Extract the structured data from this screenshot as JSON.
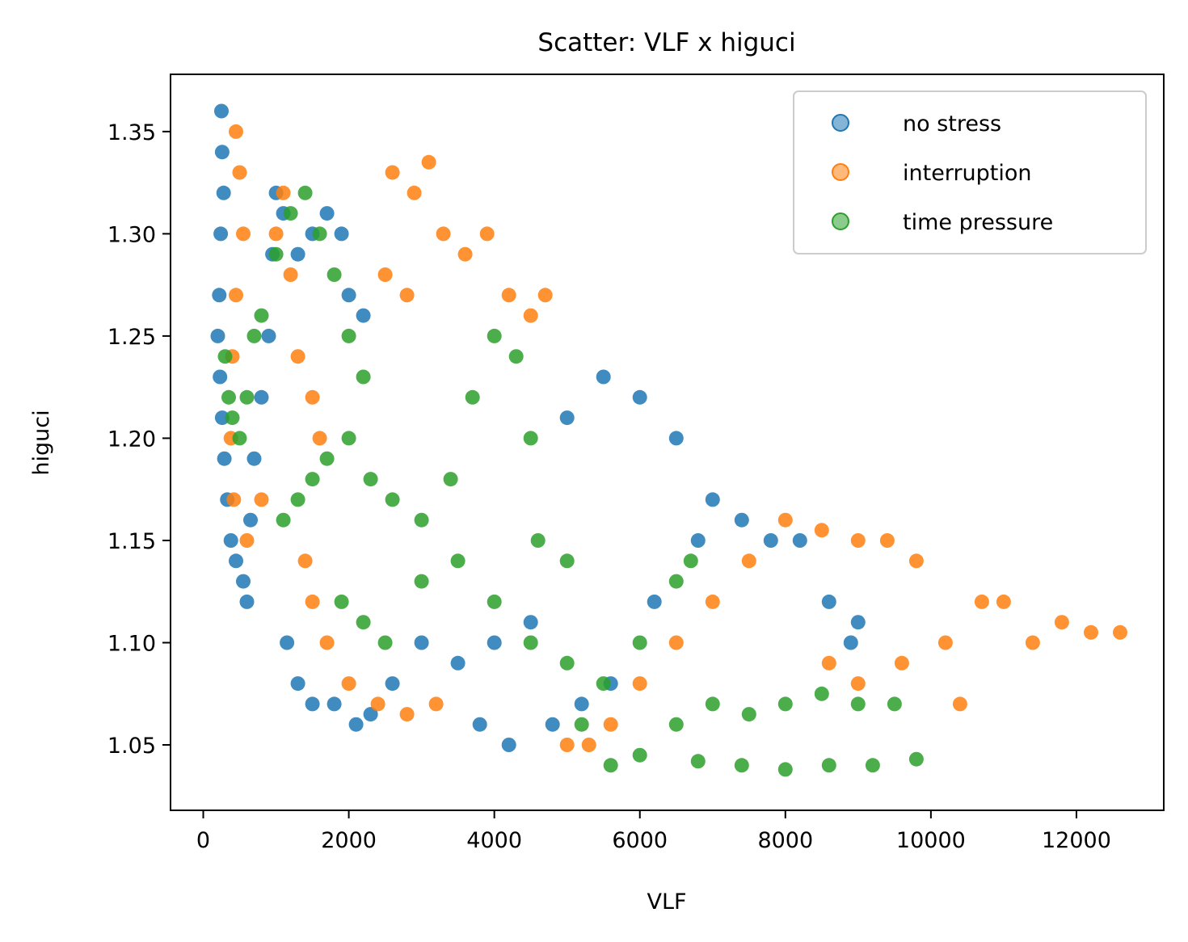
{
  "chart_data": {
    "type": "scatter",
    "title": "Scatter: VLF x higuci",
    "xlabel": "VLF",
    "ylabel": "higuci",
    "xlim": [
      -450,
      13200
    ],
    "ylim": [
      1.018,
      1.378
    ],
    "xticks": [
      0,
      2000,
      4000,
      6000,
      8000,
      10000,
      12000
    ],
    "yticks": [
      1.05,
      1.1,
      1.15,
      1.2,
      1.25,
      1.3,
      1.35
    ],
    "xtick_labels": [
      "0",
      "2000",
      "4000",
      "6000",
      "8000",
      "10000",
      "12000"
    ],
    "ytick_labels": [
      "1.05",
      "1.10",
      "1.15",
      "1.20",
      "1.25",
      "1.30",
      "1.35"
    ],
    "legend_position": "top-right",
    "grid": false,
    "series": [
      {
        "name": "no stress",
        "color": "#1f77b4",
        "points": [
          [
            250,
            1.36
          ],
          [
            260,
            1.34
          ],
          [
            280,
            1.32
          ],
          [
            240,
            1.3
          ],
          [
            220,
            1.27
          ],
          [
            200,
            1.25
          ],
          [
            230,
            1.23
          ],
          [
            260,
            1.21
          ],
          [
            290,
            1.19
          ],
          [
            330,
            1.17
          ],
          [
            380,
            1.15
          ],
          [
            450,
            1.14
          ],
          [
            550,
            1.13
          ],
          [
            600,
            1.12
          ],
          [
            650,
            1.16
          ],
          [
            700,
            1.19
          ],
          [
            800,
            1.22
          ],
          [
            900,
            1.25
          ],
          [
            950,
            1.29
          ],
          [
            1000,
            1.32
          ],
          [
            1100,
            1.31
          ],
          [
            1300,
            1.29
          ],
          [
            1500,
            1.3
          ],
          [
            1700,
            1.31
          ],
          [
            1900,
            1.3
          ],
          [
            2000,
            1.27
          ],
          [
            2200,
            1.26
          ],
          [
            1150,
            1.1
          ],
          [
            1300,
            1.08
          ],
          [
            1500,
            1.07
          ],
          [
            1800,
            1.07
          ],
          [
            2100,
            1.06
          ],
          [
            2300,
            1.065
          ],
          [
            2600,
            1.08
          ],
          [
            3000,
            1.1
          ],
          [
            3500,
            1.09
          ],
          [
            4000,
            1.1
          ],
          [
            4500,
            1.11
          ],
          [
            5000,
            1.21
          ],
          [
            5500,
            1.23
          ],
          [
            6000,
            1.22
          ],
          [
            6500,
            1.2
          ],
          [
            7000,
            1.17
          ],
          [
            7400,
            1.16
          ],
          [
            7800,
            1.15
          ],
          [
            8200,
            1.15
          ],
          [
            8600,
            1.12
          ],
          [
            8900,
            1.1
          ],
          [
            9000,
            1.11
          ],
          [
            3800,
            1.06
          ],
          [
            4200,
            1.05
          ],
          [
            4800,
            1.06
          ],
          [
            5200,
            1.07
          ],
          [
            5600,
            1.08
          ],
          [
            6200,
            1.12
          ],
          [
            6800,
            1.15
          ]
        ]
      },
      {
        "name": "interruption",
        "color": "#ff7f0e",
        "points": [
          [
            450,
            1.35
          ],
          [
            500,
            1.33
          ],
          [
            550,
            1.3
          ],
          [
            450,
            1.27
          ],
          [
            400,
            1.24
          ],
          [
            380,
            1.2
          ],
          [
            420,
            1.17
          ],
          [
            600,
            1.15
          ],
          [
            800,
            1.17
          ],
          [
            1000,
            1.3
          ],
          [
            1100,
            1.32
          ],
          [
            1200,
            1.28
          ],
          [
            1300,
            1.24
          ],
          [
            1500,
            1.22
          ],
          [
            1600,
            1.2
          ],
          [
            1400,
            1.14
          ],
          [
            1500,
            1.12
          ],
          [
            1700,
            1.1
          ],
          [
            2000,
            1.08
          ],
          [
            2400,
            1.07
          ],
          [
            2800,
            1.065
          ],
          [
            3200,
            1.07
          ],
          [
            2600,
            1.33
          ],
          [
            2900,
            1.32
          ],
          [
            3100,
            1.335
          ],
          [
            3300,
            1.3
          ],
          [
            3600,
            1.29
          ],
          [
            3900,
            1.3
          ],
          [
            4200,
            1.27
          ],
          [
            4500,
            1.26
          ],
          [
            4700,
            1.27
          ],
          [
            2500,
            1.28
          ],
          [
            2800,
            1.27
          ],
          [
            5000,
            1.05
          ],
          [
            5300,
            1.05
          ],
          [
            5600,
            1.06
          ],
          [
            6000,
            1.08
          ],
          [
            6500,
            1.1
          ],
          [
            7000,
            1.12
          ],
          [
            7500,
            1.14
          ],
          [
            8000,
            1.16
          ],
          [
            8500,
            1.155
          ],
          [
            9000,
            1.15
          ],
          [
            9400,
            1.15
          ],
          [
            9800,
            1.14
          ],
          [
            10200,
            1.1
          ],
          [
            10400,
            1.07
          ],
          [
            10700,
            1.12
          ],
          [
            11000,
            1.12
          ],
          [
            11400,
            1.1
          ],
          [
            11800,
            1.11
          ],
          [
            12200,
            1.105
          ],
          [
            12600,
            1.105
          ],
          [
            8600,
            1.09
          ],
          [
            9000,
            1.08
          ],
          [
            9600,
            1.09
          ]
        ]
      },
      {
        "name": "time pressure",
        "color": "#2ca02c",
        "points": [
          [
            300,
            1.24
          ],
          [
            350,
            1.22
          ],
          [
            400,
            1.21
          ],
          [
            500,
            1.2
          ],
          [
            600,
            1.22
          ],
          [
            700,
            1.25
          ],
          [
            800,
            1.26
          ],
          [
            1000,
            1.29
          ],
          [
            1200,
            1.31
          ],
          [
            1400,
            1.32
          ],
          [
            1600,
            1.3
          ],
          [
            1800,
            1.28
          ],
          [
            2000,
            1.25
          ],
          [
            2200,
            1.23
          ],
          [
            1100,
            1.16
          ],
          [
            1300,
            1.17
          ],
          [
            1500,
            1.18
          ],
          [
            1700,
            1.19
          ],
          [
            2000,
            1.2
          ],
          [
            2300,
            1.18
          ],
          [
            2600,
            1.17
          ],
          [
            3000,
            1.16
          ],
          [
            3400,
            1.18
          ],
          [
            3700,
            1.22
          ],
          [
            4000,
            1.25
          ],
          [
            4300,
            1.24
          ],
          [
            4500,
            1.2
          ],
          [
            1900,
            1.12
          ],
          [
            2200,
            1.11
          ],
          [
            2500,
            1.1
          ],
          [
            3000,
            1.13
          ],
          [
            3500,
            1.14
          ],
          [
            4000,
            1.12
          ],
          [
            4500,
            1.1
          ],
          [
            5000,
            1.09
          ],
          [
            5500,
            1.08
          ],
          [
            6000,
            1.1
          ],
          [
            6500,
            1.13
          ],
          [
            6700,
            1.14
          ],
          [
            5200,
            1.06
          ],
          [
            5600,
            1.04
          ],
          [
            6000,
            1.045
          ],
          [
            6500,
            1.06
          ],
          [
            7000,
            1.07
          ],
          [
            7500,
            1.065
          ],
          [
            8000,
            1.07
          ],
          [
            8500,
            1.075
          ],
          [
            9000,
            1.07
          ],
          [
            9500,
            1.07
          ],
          [
            9800,
            1.043
          ],
          [
            9200,
            1.04
          ],
          [
            8600,
            1.04
          ],
          [
            8000,
            1.038
          ],
          [
            7400,
            1.04
          ],
          [
            6800,
            1.042
          ],
          [
            4600,
            1.15
          ],
          [
            5000,
            1.14
          ]
        ]
      }
    ]
  }
}
